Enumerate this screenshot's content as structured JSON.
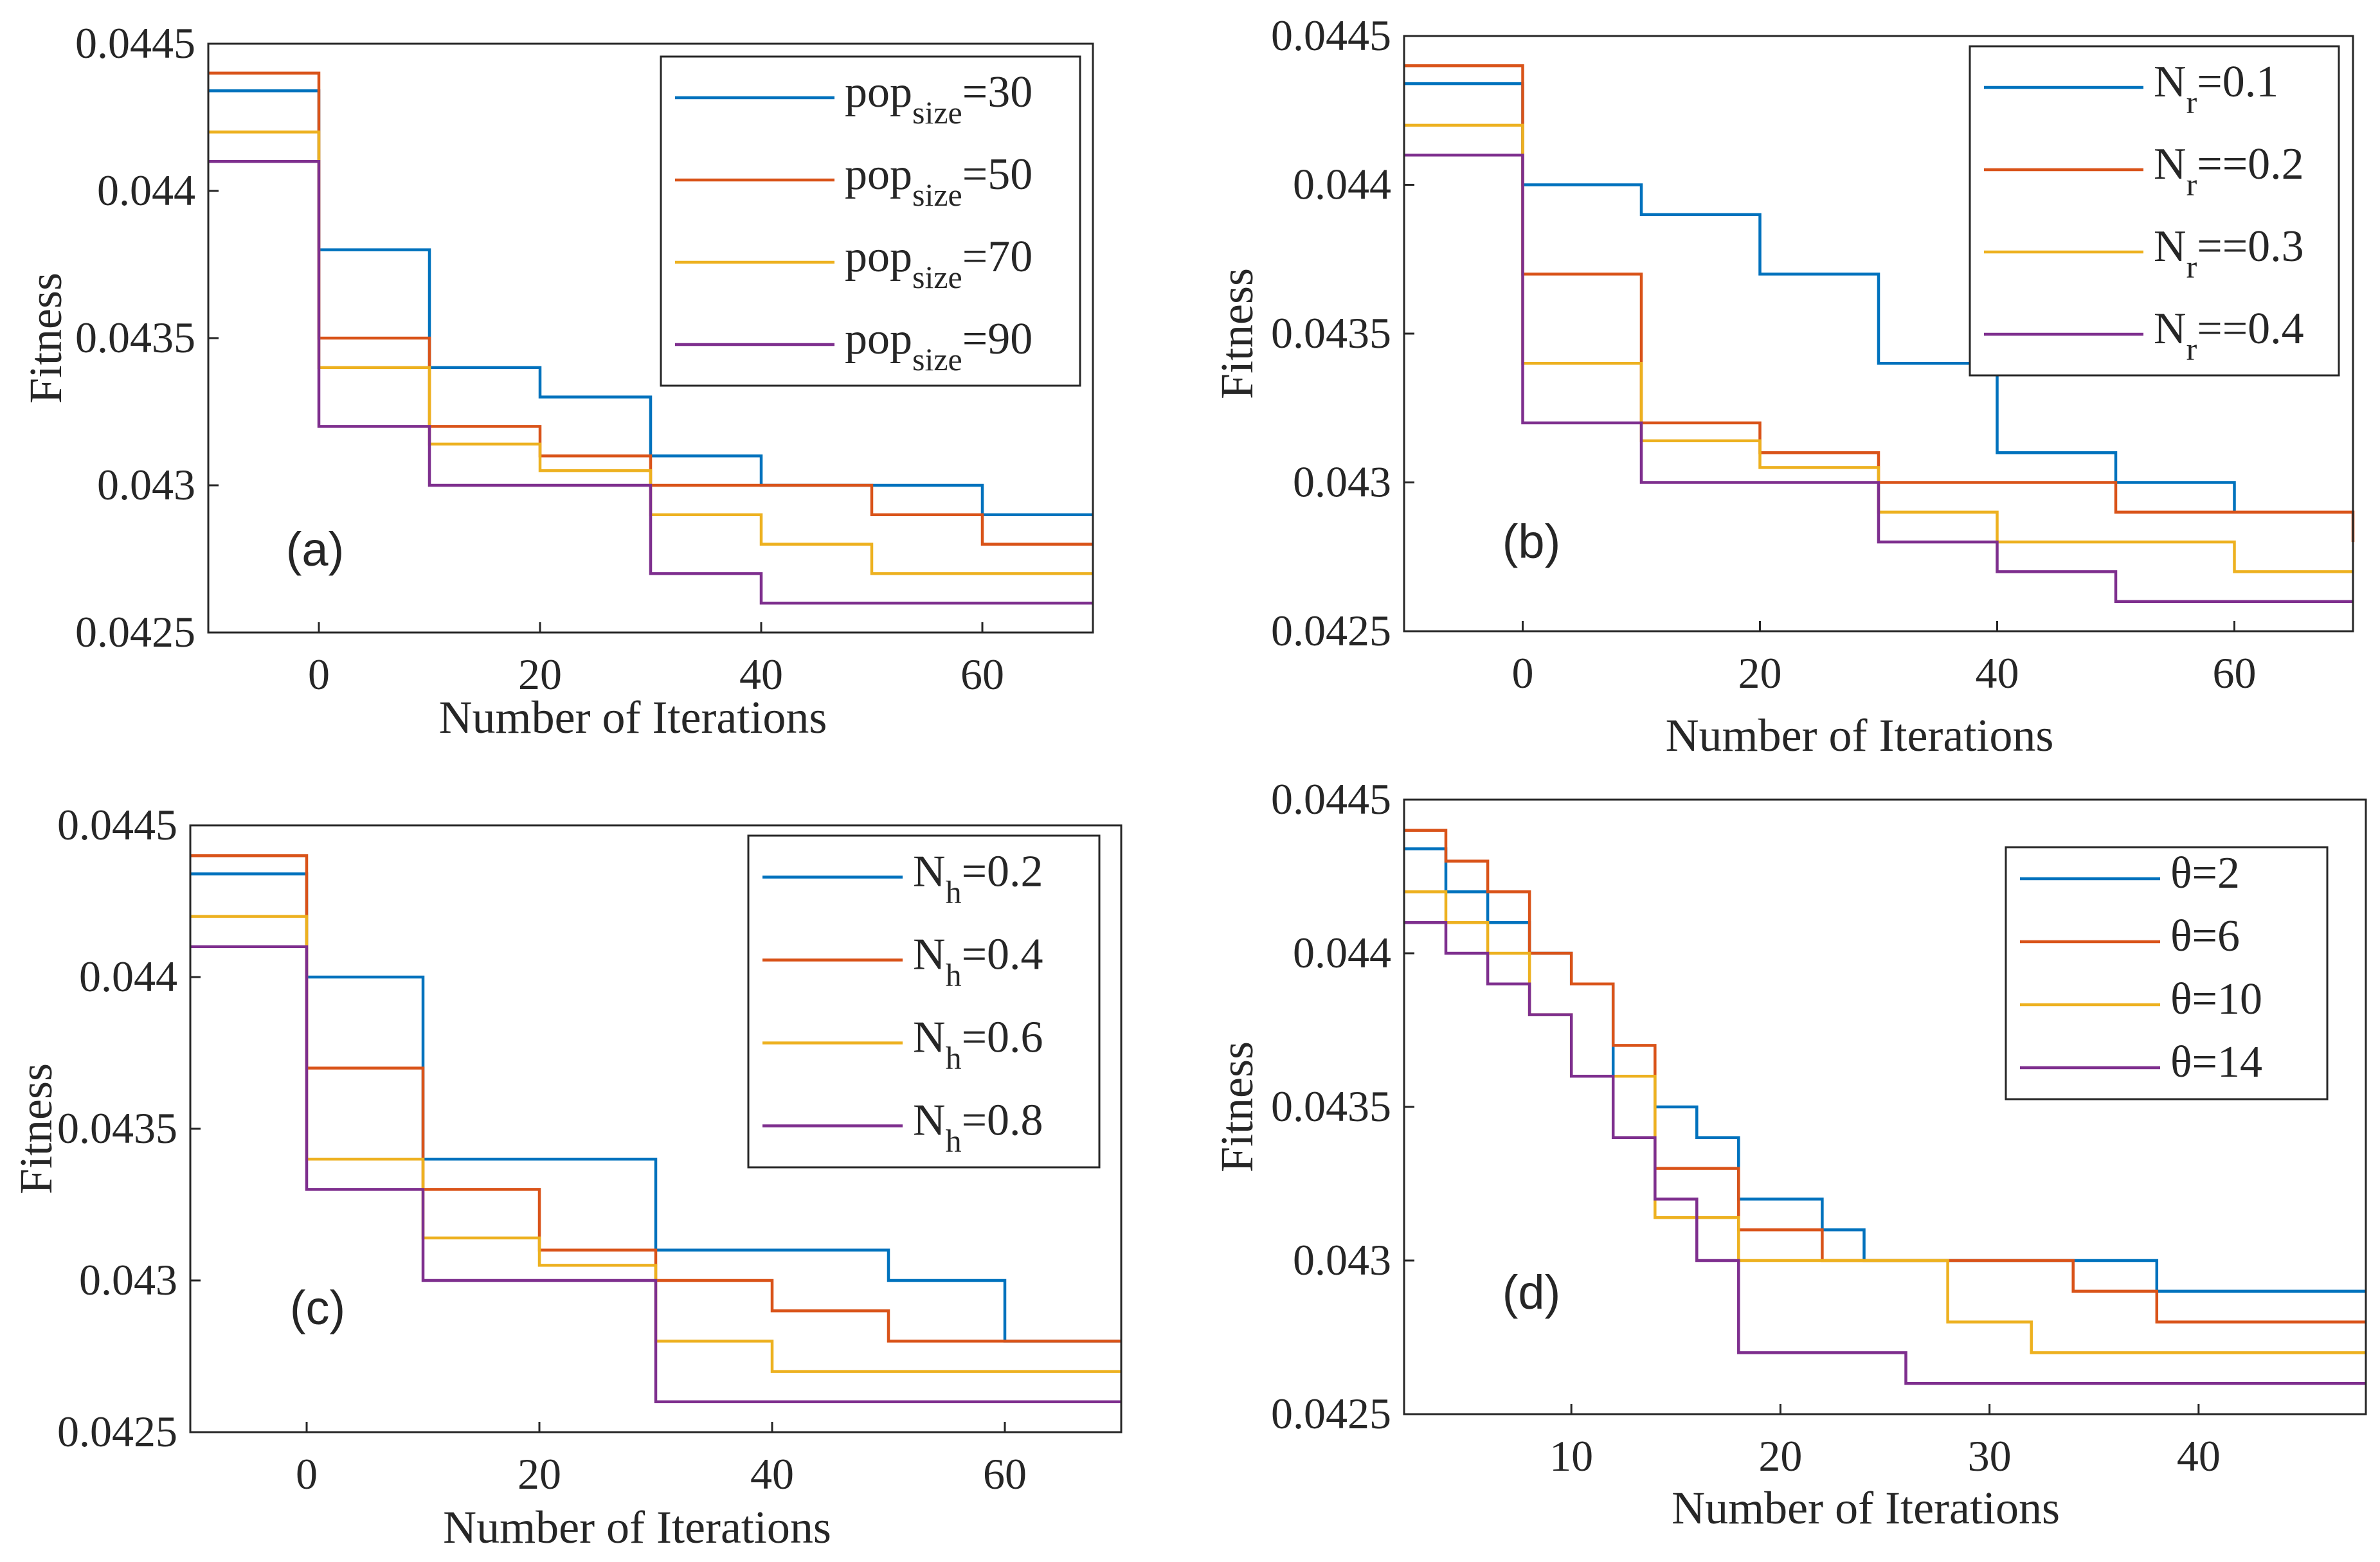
{
  "figure": {
    "xlabel": "Number of Iterations",
    "ylabel": "Fitness"
  },
  "chart_data": [
    {
      "type": "line",
      "panel": "(a)",
      "xlabel": "Number of Iterations",
      "ylabel": "Fitness",
      "xlim": [
        -10,
        70
      ],
      "ylim": [
        0.0425,
        0.0445
      ],
      "xticks": [
        0,
        20,
        40,
        60
      ],
      "yticks": [
        0.0425,
        0.043,
        0.0435,
        0.044,
        0.0445
      ],
      "xtick_labels": [
        "0",
        "20",
        "40",
        "60"
      ],
      "ytick_labels": [
        "0.0425",
        "0.043",
        "0.0435",
        "0.044",
        "0.0445"
      ],
      "legend_position": "top-right",
      "series": [
        {
          "legend_base": "pop",
          "legend_sub": "size",
          "legend_rest": "=30",
          "color": "#0072BD",
          "x": [
            -10,
            0,
            10,
            20,
            30,
            40,
            50,
            60,
            70
          ],
          "y": [
            0.04434,
            0.0438,
            0.0434,
            0.0433,
            0.0431,
            0.043,
            0.043,
            0.0429,
            0.0429
          ]
        },
        {
          "legend_base": "pop",
          "legend_sub": "size",
          "legend_rest": "=50",
          "color": "#D95319",
          "x": [
            -10,
            0,
            10,
            20,
            30,
            40,
            50,
            60,
            70
          ],
          "y": [
            0.0444,
            0.0435,
            0.0432,
            0.0431,
            0.043,
            0.043,
            0.0429,
            0.0428,
            0.0428
          ]
        },
        {
          "legend_base": "pop",
          "legend_sub": "size",
          "legend_rest": "=70",
          "color": "#EDB120",
          "x": [
            -10,
            0,
            10,
            20,
            30,
            40,
            50,
            60,
            70
          ],
          "y": [
            0.0442,
            0.0434,
            0.04314,
            0.04305,
            0.0429,
            0.0428,
            0.0427,
            0.0427,
            0.0427
          ]
        },
        {
          "legend_base": "pop",
          "legend_sub": "size",
          "legend_rest": "=90",
          "color": "#7E2F8E",
          "x": [
            -10,
            0,
            10,
            20,
            30,
            40,
            50,
            60,
            70
          ],
          "y": [
            0.0441,
            0.0432,
            0.043,
            0.043,
            0.0427,
            0.0426,
            0.0426,
            0.0426,
            0.0426
          ]
        }
      ]
    },
    {
      "type": "line",
      "panel": "(b)",
      "xlabel": "Number of Iterations",
      "ylabel": "Fitness",
      "xlim": [
        -10,
        70
      ],
      "ylim": [
        0.0425,
        0.0445
      ],
      "xticks": [
        0,
        20,
        40,
        60
      ],
      "yticks": [
        0.0425,
        0.043,
        0.0435,
        0.044,
        0.0445
      ],
      "xtick_labels": [
        "0",
        "20",
        "40",
        "60"
      ],
      "ytick_labels": [
        "0.0425",
        "0.043",
        "0.0435",
        "0.044",
        "0.0445"
      ],
      "legend_position": "top-right",
      "series": [
        {
          "legend_base": "N",
          "legend_sub": "r",
          "legend_rest": "=0.1",
          "color": "#0072BD",
          "x": [
            -10,
            0,
            10,
            20,
            30,
            40,
            50,
            60,
            70
          ],
          "y": [
            0.04434,
            0.044,
            0.0439,
            0.0437,
            0.0434,
            0.0431,
            0.043,
            0.0429,
            0.0429
          ]
        },
        {
          "legend_base": "N",
          "legend_sub": "r",
          "legend_rest": "==0.2",
          "color": "#D95319",
          "x": [
            -10,
            0,
            10,
            20,
            30,
            40,
            50,
            60,
            70
          ],
          "y": [
            0.0444,
            0.0437,
            0.0432,
            0.0431,
            0.043,
            0.043,
            0.0429,
            0.0429,
            0.0428
          ]
        },
        {
          "legend_base": "N",
          "legend_sub": "r",
          "legend_rest": "==0.3",
          "color": "#EDB120",
          "x": [
            -10,
            0,
            10,
            20,
            30,
            40,
            50,
            60,
            70
          ],
          "y": [
            0.0442,
            0.0434,
            0.04314,
            0.04305,
            0.0429,
            0.0428,
            0.0428,
            0.0427,
            0.0427
          ]
        },
        {
          "legend_base": "N",
          "legend_sub": "r",
          "legend_rest": "==0.4",
          "color": "#7E2F8E",
          "x": [
            -10,
            0,
            10,
            20,
            30,
            40,
            50,
            60,
            70
          ],
          "y": [
            0.0441,
            0.0432,
            0.043,
            0.043,
            0.0428,
            0.0427,
            0.0426,
            0.0426,
            0.0426
          ]
        }
      ]
    },
    {
      "type": "line",
      "panel": "(c)",
      "xlabel": "Number of Iterations",
      "ylabel": "Fitness",
      "xlim": [
        -10,
        70
      ],
      "ylim": [
        0.0425,
        0.0445
      ],
      "xticks": [
        0,
        20,
        40,
        60
      ],
      "yticks": [
        0.0425,
        0.043,
        0.0435,
        0.044,
        0.0445
      ],
      "xtick_labels": [
        "0",
        "20",
        "40",
        "60"
      ],
      "ytick_labels": [
        "0.0425",
        "0.043",
        "0.0435",
        "0.044",
        "0.0445"
      ],
      "legend_position": "top-right",
      "series": [
        {
          "legend_base": "N",
          "legend_sub": "h",
          "legend_rest": "=0.2",
          "color": "#0072BD",
          "x": [
            -10,
            0,
            10,
            20,
            30,
            40,
            50,
            60,
            70
          ],
          "y": [
            0.04434,
            0.044,
            0.0434,
            0.0434,
            0.0431,
            0.0431,
            0.043,
            0.0428,
            0.0428
          ]
        },
        {
          "legend_base": "N",
          "legend_sub": "h",
          "legend_rest": "=0.4",
          "color": "#D95319",
          "x": [
            -10,
            0,
            10,
            20,
            30,
            40,
            50,
            60,
            70
          ],
          "y": [
            0.0444,
            0.0437,
            0.0433,
            0.0431,
            0.043,
            0.0429,
            0.0428,
            0.0428,
            0.0428
          ]
        },
        {
          "legend_base": "N",
          "legend_sub": "h",
          "legend_rest": "=0.6",
          "color": "#EDB120",
          "x": [
            -10,
            0,
            10,
            20,
            30,
            40,
            50,
            60,
            70
          ],
          "y": [
            0.0442,
            0.0434,
            0.04314,
            0.04305,
            0.0428,
            0.0427,
            0.0427,
            0.0427,
            0.0427
          ]
        },
        {
          "legend_base": "N",
          "legend_sub": "h",
          "legend_rest": "=0.8",
          "color": "#7E2F8E",
          "x": [
            -10,
            0,
            10,
            20,
            30,
            40,
            50,
            60,
            70
          ],
          "y": [
            0.0441,
            0.0433,
            0.043,
            0.043,
            0.0426,
            0.0426,
            0.0426,
            0.0426,
            0.0426
          ]
        }
      ]
    },
    {
      "type": "line",
      "panel": "(d)",
      "xlabel": "Number of Iterations",
      "ylabel": "Fitness",
      "xlim": [
        2,
        48
      ],
      "ylim": [
        0.0425,
        0.0445
      ],
      "xticks": [
        10,
        20,
        30,
        40
      ],
      "yticks": [
        0.0425,
        0.043,
        0.0435,
        0.044,
        0.0445
      ],
      "xtick_labels": [
        "10",
        "",
        "20",
        "",
        "30",
        "",
        "40"
      ],
      "xtick_label_values": [
        10,
        15,
        20,
        25,
        30,
        35,
        40
      ],
      "ytick_labels": [
        "0.0425",
        "0.043",
        "0.0435",
        "0.044",
        "0.0445"
      ],
      "legend_position": "top-right",
      "series": [
        {
          "legend_base": "θ=2",
          "legend_sub": "",
          "legend_rest": "",
          "color": "#0072BD",
          "x": [
            2,
            4,
            6,
            8,
            10,
            12,
            14,
            16,
            18,
            20,
            22,
            24,
            26,
            28,
            30,
            32,
            34,
            36,
            38,
            40,
            42,
            44,
            46,
            48
          ],
          "y": [
            0.04434,
            0.0442,
            0.0441,
            0.044,
            0.0439,
            0.0436,
            0.0435,
            0.0434,
            0.0432,
            0.0432,
            0.0431,
            0.043,
            0.043,
            0.043,
            0.043,
            0.043,
            0.043,
            0.043,
            0.0429,
            0.0429,
            0.0429,
            0.0429,
            0.0429,
            0.0429
          ]
        },
        {
          "legend_base": "θ=6",
          "legend_sub": "",
          "legend_rest": "",
          "color": "#D95319",
          "x": [
            2,
            4,
            6,
            8,
            10,
            12,
            14,
            16,
            18,
            20,
            22,
            24,
            26,
            28,
            30,
            32,
            34,
            36,
            38,
            40,
            42,
            44,
            46,
            48
          ],
          "y": [
            0.0444,
            0.0443,
            0.0442,
            0.044,
            0.0439,
            0.0437,
            0.0433,
            0.0433,
            0.0431,
            0.0431,
            0.043,
            0.043,
            0.043,
            0.043,
            0.043,
            0.043,
            0.0429,
            0.0429,
            0.0428,
            0.0428,
            0.0428,
            0.0428,
            0.0428,
            0.0428
          ]
        },
        {
          "legend_base": "θ=10",
          "legend_sub": "",
          "legend_rest": "",
          "color": "#EDB120",
          "x": [
            2,
            4,
            6,
            8,
            10,
            12,
            14,
            16,
            18,
            20,
            22,
            24,
            26,
            28,
            30,
            32,
            34,
            36,
            38,
            40,
            42,
            44,
            46,
            48
          ],
          "y": [
            0.0442,
            0.0441,
            0.044,
            0.0438,
            0.0436,
            0.0436,
            0.04314,
            0.04314,
            0.043,
            0.043,
            0.043,
            0.043,
            0.043,
            0.0428,
            0.0428,
            0.0427,
            0.0427,
            0.0427,
            0.0427,
            0.0427,
            0.0427,
            0.0427,
            0.0427,
            0.0427
          ]
        },
        {
          "legend_base": "θ=14",
          "legend_sub": "",
          "legend_rest": "",
          "color": "#7E2F8E",
          "x": [
            2,
            4,
            6,
            8,
            10,
            12,
            14,
            16,
            18,
            20,
            22,
            24,
            26,
            28,
            30,
            32,
            34,
            36,
            38,
            40,
            42,
            44,
            46,
            48
          ],
          "y": [
            0.0441,
            0.044,
            0.0439,
            0.0438,
            0.0436,
            0.0434,
            0.0432,
            0.043,
            0.0427,
            0.0427,
            0.0427,
            0.0427,
            0.0426,
            0.0426,
            0.0426,
            0.0426,
            0.0426,
            0.0426,
            0.0426,
            0.0426,
            0.0426,
            0.0426,
            0.0426,
            0.0426
          ]
        }
      ]
    }
  ]
}
